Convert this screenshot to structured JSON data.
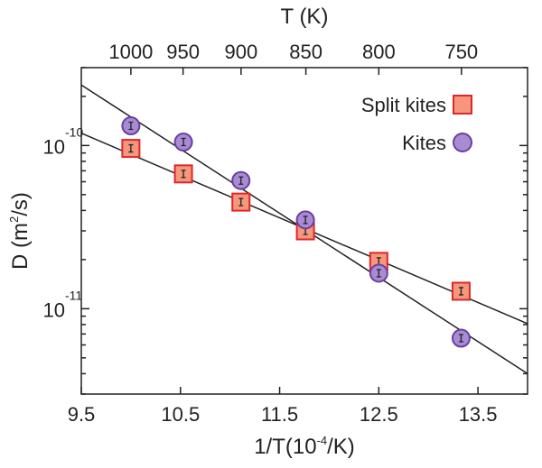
{
  "chart_data": {
    "type": "scatter",
    "x_axis": {
      "label": "1/T(10",
      "label_sup": "-4",
      "label_end": "/K)",
      "xlim": [
        9.5,
        14.0
      ],
      "ticks": [
        9.5,
        10.5,
        11.5,
        12.5,
        13.5
      ],
      "tick_labels": [
        "9.5",
        "10.5",
        "11.5",
        "12.5",
        "13.5"
      ]
    },
    "top_axis": {
      "label": "T (K)",
      "ticks_K": [
        1000,
        950,
        900,
        850,
        800,
        750
      ],
      "tick_labels": [
        "1000",
        "950",
        "900",
        "850",
        "800",
        "750"
      ]
    },
    "y_axis": {
      "label": "D (m",
      "label_sup": "2",
      "label_end": "/s)",
      "scale": "log",
      "ylim": [
        3e-12,
        3e-10
      ],
      "ticks": [
        1e-10,
        1e-11
      ],
      "tick_bases": [
        "10",
        "10"
      ],
      "tick_exps": [
        "-10",
        "-11"
      ]
    },
    "series": [
      {
        "name": "Split kites",
        "marker": "square",
        "color": "#f4977c",
        "edge": "#e0262a",
        "points": [
          {
            "x": 10.0,
            "y": 9.6e-11
          },
          {
            "x": 10.53,
            "y": 6.7e-11
          },
          {
            "x": 11.11,
            "y": 4.5e-11
          },
          {
            "x": 11.76,
            "y": 3e-11
          },
          {
            "x": 12.5,
            "y": 1.95e-11
          },
          {
            "x": 13.33,
            "y": 1.28e-11
          }
        ],
        "fit": {
          "x": [
            9.5,
            14.0
          ],
          "y": [
            1.19e-10,
            8.1e-12
          ]
        }
      },
      {
        "name": "Kites",
        "marker": "circle",
        "color": "#a78bd3",
        "edge": "#6a3fa0",
        "points": [
          {
            "x": 10.0,
            "y": 1.32e-10
          },
          {
            "x": 10.53,
            "y": 1.05e-10
          },
          {
            "x": 11.11,
            "y": 6.1e-11
          },
          {
            "x": 11.76,
            "y": 3.5e-11
          },
          {
            "x": 12.5,
            "y": 1.65e-11
          },
          {
            "x": 13.33,
            "y": 6.6e-12
          }
        ],
        "fit": {
          "x": [
            9.5,
            14.0
          ],
          "y": [
            2.35e-10,
            4e-12
          ]
        }
      }
    ],
    "legend": {
      "position": "top-right",
      "entries": [
        "Split kites",
        "Kites"
      ]
    },
    "grid": false
  }
}
